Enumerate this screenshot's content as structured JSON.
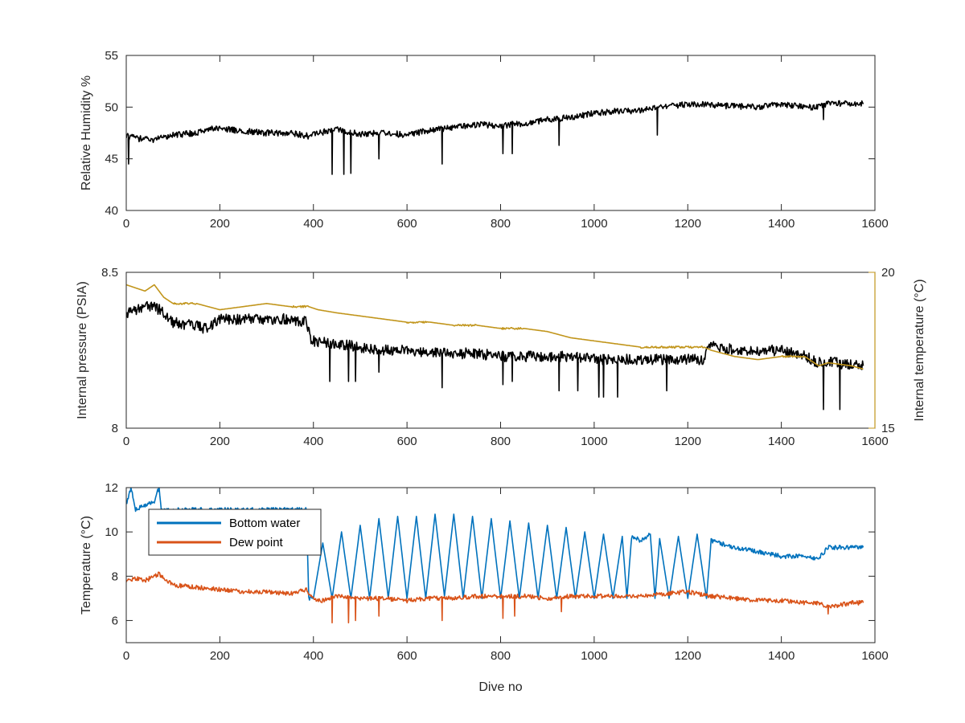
{
  "chart_data": [
    {
      "type": "line",
      "xlabel": "",
      "ylabel": "Relative Humidity %",
      "xlim": [
        0,
        1600
      ],
      "ylim": [
        40,
        55
      ],
      "xticks": [
        "0",
        "200",
        "400",
        "600",
        "800",
        "1000",
        "1200",
        "1400",
        "1600"
      ],
      "yticks": [
        "40",
        "45",
        "50",
        "55"
      ],
      "series": [
        {
          "name": "",
          "color": "#000000",
          "x": [
            0,
            20,
            50,
            100,
            150,
            180,
            250,
            300,
            350,
            390,
            410,
            450,
            500,
            550,
            600,
            650,
            700,
            750,
            800,
            850,
            900,
            950,
            1000,
            1050,
            1100,
            1150,
            1200,
            1250,
            1300,
            1350,
            1400,
            1450,
            1480,
            1500,
            1550,
            1575
          ],
          "y": [
            47.2,
            47.0,
            46.8,
            47.3,
            47.5,
            48.0,
            47.7,
            47.5,
            47.5,
            47.2,
            47.5,
            47.8,
            47.4,
            47.5,
            47.3,
            47.8,
            48.0,
            48.3,
            48.2,
            48.4,
            48.8,
            49.0,
            49.4,
            49.6,
            49.7,
            50.0,
            50.3,
            50.2,
            50.1,
            50.0,
            50.3,
            50.0,
            50.0,
            50.4,
            50.3,
            50.3
          ],
          "spikes": [
            [
              5,
              44.5
            ],
            [
              440,
              43.5
            ],
            [
              465,
              43.5
            ],
            [
              480,
              43.6
            ],
            [
              540,
              45.0
            ],
            [
              675,
              44.5
            ],
            [
              805,
              45.5
            ],
            [
              825,
              45.5
            ],
            [
              925,
              46.3
            ],
            [
              1135,
              47.3
            ],
            [
              1490,
              48.8
            ]
          ]
        }
      ]
    },
    {
      "type": "line",
      "xlabel": "",
      "ylabel": "Internal pressure (PSIA)",
      "ylabel_right": "Internal temperature (°C)",
      "xlim": [
        0,
        1600
      ],
      "ylim": [
        8,
        8.5
      ],
      "ylim_right": [
        15,
        20
      ],
      "xticks": [
        "0",
        "200",
        "400",
        "600",
        "800",
        "1000",
        "1200",
        "1400",
        "1600"
      ],
      "yticks": [
        "8",
        "8.5"
      ],
      "yticks_right": [
        "15",
        "20"
      ],
      "series": [
        {
          "name": "",
          "color": "#000000",
          "axis": "left",
          "x": [
            0,
            20,
            40,
            60,
            80,
            100,
            140,
            170,
            200,
            250,
            300,
            350,
            385,
            395,
            450,
            500,
            550,
            600,
            650,
            700,
            750,
            800,
            850,
            900,
            950,
            1000,
            1050,
            1100,
            1150,
            1200,
            1235,
            1240,
            1300,
            1350,
            1400,
            1450,
            1480,
            1520,
            1560,
            1575
          ],
          "y": [
            8.37,
            8.38,
            8.39,
            8.39,
            8.37,
            8.34,
            8.33,
            8.32,
            8.35,
            8.35,
            8.35,
            8.35,
            8.34,
            8.28,
            8.27,
            8.26,
            8.25,
            8.25,
            8.24,
            8.24,
            8.24,
            8.23,
            8.23,
            8.23,
            8.23,
            8.22,
            8.22,
            8.22,
            8.22,
            8.22,
            8.22,
            8.27,
            8.25,
            8.25,
            8.25,
            8.23,
            8.21,
            8.21,
            8.2,
            8.2
          ],
          "spikes": [
            [
              435,
              8.15
            ],
            [
              475,
              8.15
            ],
            [
              490,
              8.15
            ],
            [
              540,
              8.18
            ],
            [
              675,
              8.13
            ],
            [
              805,
              8.14
            ],
            [
              825,
              8.15
            ],
            [
              925,
              8.12
            ],
            [
              965,
              8.12
            ],
            [
              1010,
              8.1
            ],
            [
              1020,
              8.1
            ],
            [
              1050,
              8.1
            ],
            [
              1155,
              8.12
            ],
            [
              1490,
              8.06
            ],
            [
              1525,
              8.06
            ]
          ]
        },
        {
          "name": "",
          "color": "#C1951B",
          "axis": "right",
          "x": [
            0,
            20,
            40,
            60,
            80,
            100,
            150,
            200,
            250,
            300,
            350,
            390,
            410,
            450,
            500,
            550,
            600,
            650,
            700,
            750,
            800,
            850,
            900,
            950,
            1000,
            1050,
            1100,
            1150,
            1200,
            1235,
            1250,
            1300,
            1350,
            1400,
            1450,
            1480,
            1500,
            1550,
            1575
          ],
          "y": [
            19.6,
            19.5,
            19.4,
            19.6,
            19.2,
            19.0,
            19.0,
            18.8,
            18.9,
            19.0,
            18.9,
            18.9,
            18.8,
            18.7,
            18.6,
            18.5,
            18.4,
            18.4,
            18.3,
            18.3,
            18.2,
            18.2,
            18.1,
            17.9,
            17.8,
            17.7,
            17.6,
            17.6,
            17.6,
            17.6,
            17.5,
            17.3,
            17.2,
            17.3,
            17.3,
            17.0,
            17.1,
            17.0,
            16.9
          ]
        }
      ]
    },
    {
      "type": "line",
      "xlabel": "Dive no",
      "ylabel": "Temperature (°C)",
      "xlim": [
        0,
        1600
      ],
      "ylim": [
        5,
        12
      ],
      "xticks": [
        "0",
        "200",
        "400",
        "600",
        "800",
        "1000",
        "1200",
        "1400",
        "1600"
      ],
      "yticks": [
        "6",
        "8",
        "10",
        "12"
      ],
      "legend": "top-left",
      "series": [
        {
          "name": "Bottom water",
          "color": "#0072BD",
          "x": [
            0,
            10,
            20,
            40,
            60,
            70,
            75,
            385,
            390,
            400,
            420,
            440,
            460,
            480,
            500,
            520,
            540,
            560,
            580,
            600,
            620,
            640,
            660,
            680,
            700,
            720,
            740,
            760,
            780,
            800,
            820,
            840,
            860,
            880,
            900,
            920,
            940,
            960,
            980,
            1000,
            1020,
            1040,
            1060,
            1070,
            1080,
            1100,
            1120,
            1130,
            1140,
            1160,
            1180,
            1200,
            1220,
            1240,
            1250,
            1300,
            1350,
            1400,
            1450,
            1480,
            1500,
            1550,
            1575
          ],
          "y": [
            11.2,
            12.0,
            11.0,
            11.2,
            11.4,
            12.0,
            11.0,
            11.0,
            7.0,
            7.0,
            9.5,
            7.0,
            10.0,
            7.0,
            10.3,
            7.0,
            10.6,
            7.0,
            10.7,
            7.0,
            10.7,
            7.0,
            10.8,
            7.1,
            10.8,
            7.0,
            10.7,
            7.0,
            10.6,
            7.0,
            10.5,
            7.0,
            10.4,
            7.0,
            10.3,
            7.0,
            10.2,
            7.0,
            10.0,
            7.0,
            9.9,
            7.0,
            9.8,
            7.0,
            9.8,
            9.6,
            9.9,
            7.0,
            9.7,
            7.0,
            9.8,
            7.0,
            9.9,
            7.0,
            9.6,
            9.3,
            9.1,
            8.9,
            8.9,
            8.8,
            9.3,
            9.3,
            9.3
          ]
        },
        {
          "name": "Dew point",
          "color": "#D95319",
          "x": [
            0,
            20,
            40,
            60,
            70,
            100,
            150,
            200,
            250,
            300,
            350,
            385,
            400,
            420,
            450,
            500,
            550,
            600,
            650,
            700,
            750,
            800,
            850,
            900,
            950,
            1000,
            1050,
            1100,
            1150,
            1200,
            1250,
            1300,
            1350,
            1400,
            1450,
            1480,
            1500,
            1550,
            1575
          ],
          "y": [
            7.8,
            7.9,
            7.8,
            8.0,
            8.1,
            7.6,
            7.5,
            7.4,
            7.3,
            7.3,
            7.2,
            7.4,
            7.0,
            6.9,
            7.1,
            7.0,
            7.0,
            6.9,
            7.0,
            7.0,
            7.1,
            7.1,
            7.1,
            7.0,
            7.1,
            7.1,
            7.1,
            7.1,
            7.2,
            7.3,
            7.1,
            7.0,
            6.9,
            6.9,
            6.8,
            6.8,
            6.6,
            6.8,
            6.8
          ],
          "spikes": [
            [
              440,
              5.9
            ],
            [
              475,
              5.9
            ],
            [
              490,
              6.0
            ],
            [
              540,
              6.2
            ],
            [
              675,
              6.0
            ],
            [
              805,
              6.1
            ],
            [
              830,
              6.2
            ],
            [
              930,
              6.4
            ],
            [
              1500,
              6.3
            ]
          ]
        }
      ]
    }
  ]
}
